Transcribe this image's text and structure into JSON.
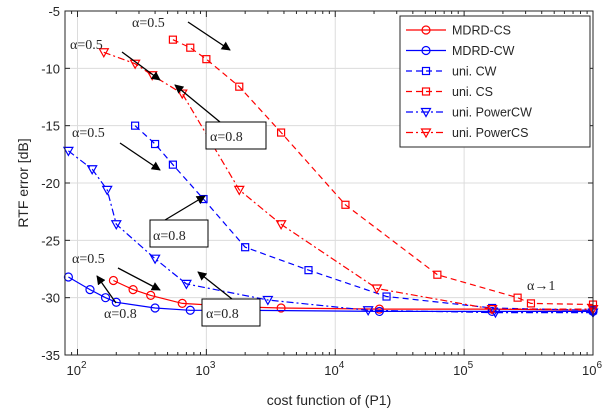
{
  "chart_data": {
    "type": "line",
    "xlabel": "cost function of (P1)",
    "ylabel": "RTF error [dB]",
    "xscale": "log",
    "xlim": [
      80,
      1000000
    ],
    "ylim": [
      -35,
      -5
    ],
    "x_ticks": [
      {
        "value": 100,
        "base": "10",
        "exp": "2"
      },
      {
        "value": 1000,
        "base": "10",
        "exp": "3"
      },
      {
        "value": 10000,
        "base": "10",
        "exp": "4"
      },
      {
        "value": 100000,
        "base": "10",
        "exp": "5"
      },
      {
        "value": 1000000,
        "base": "10",
        "exp": "6"
      }
    ],
    "y_ticks": [
      -35,
      -30,
      -25,
      -20,
      -15,
      -10,
      -5
    ],
    "grid": true,
    "legend_position": "top-right",
    "series": [
      {
        "name": "MDRD-CS",
        "color": "#ff0000",
        "marker": "circle",
        "dash": "solid",
        "x": [
          190,
          270,
          370,
          650,
          1800,
          3800,
          22000,
          165000,
          1000000
        ],
        "y": [
          -28.5,
          -29.3,
          -29.8,
          -30.5,
          -30.8,
          -30.9,
          -31.0,
          -31.0,
          -31.1
        ]
      },
      {
        "name": "MDRD-CW",
        "color": "#0000ff",
        "marker": "circle",
        "dash": "solid",
        "x": [
          85,
          125,
          165,
          200,
          400,
          750,
          2100,
          22000,
          165000,
          1000000
        ],
        "y": [
          -28.2,
          -29.3,
          -30.0,
          -30.4,
          -30.9,
          -31.1,
          -31.1,
          -31.2,
          -31.2,
          -31.2
        ]
      },
      {
        "name": " uni. CW",
        "color": "#0000ff",
        "marker": "square",
        "dash": "dashed",
        "x": [
          280,
          400,
          550,
          950,
          2000,
          6200,
          25000,
          165000,
          1000000
        ],
        "y": [
          -15.0,
          -16.6,
          -18.4,
          -21.4,
          -25.6,
          -27.6,
          -29.9,
          -30.9,
          -31.1
        ]
      },
      {
        "name": "uni. CS",
        "color": "#ff0000",
        "marker": "square",
        "dash": "dashed",
        "x": [
          550,
          750,
          1000,
          1800,
          3800,
          12000,
          62000,
          260000,
          330000,
          1000000
        ],
        "y": [
          -7.5,
          -8.2,
          -9.2,
          -11.6,
          -15.6,
          -21.9,
          -28.0,
          -30.0,
          -30.5,
          -30.6
        ]
      },
      {
        "name": "uni. PowerCW",
        "color": "#0000ff",
        "marker": "triangle-down",
        "dash": "dashdot",
        "x": [
          85,
          130,
          170,
          200,
          400,
          700,
          3000,
          18000,
          175000,
          1000000
        ],
        "y": [
          -17.2,
          -18.8,
          -20.6,
          -23.6,
          -26.6,
          -28.8,
          -30.2,
          -31.1,
          -31.3,
          -31.3
        ]
      },
      {
        "name": "uni. PowerCS",
        "color": "#ff0000",
        "marker": "triangle-down",
        "dash": "dashdot",
        "x": [
          160,
          280,
          380,
          650,
          1800,
          3800,
          21000,
          165000,
          1000000
        ],
        "y": [
          -8.6,
          -9.6,
          -10.6,
          -12.2,
          -20.6,
          -23.6,
          -29.2,
          -31.0,
          -31.0
        ]
      }
    ],
    "annotations": [
      {
        "label": "α=0.5",
        "boxed": false
      },
      {
        "label": "α=0.5",
        "boxed": false
      },
      {
        "label": "α=0.8",
        "boxed": true
      },
      {
        "label": "α=0.5",
        "boxed": false
      },
      {
        "label": "α=0.8",
        "boxed": true
      },
      {
        "label": "α=0.5",
        "boxed": false
      },
      {
        "label": "α=0.8",
        "boxed": false
      },
      {
        "label": "α=0.8",
        "boxed": true
      },
      {
        "label": "α→1",
        "boxed": false
      }
    ]
  }
}
